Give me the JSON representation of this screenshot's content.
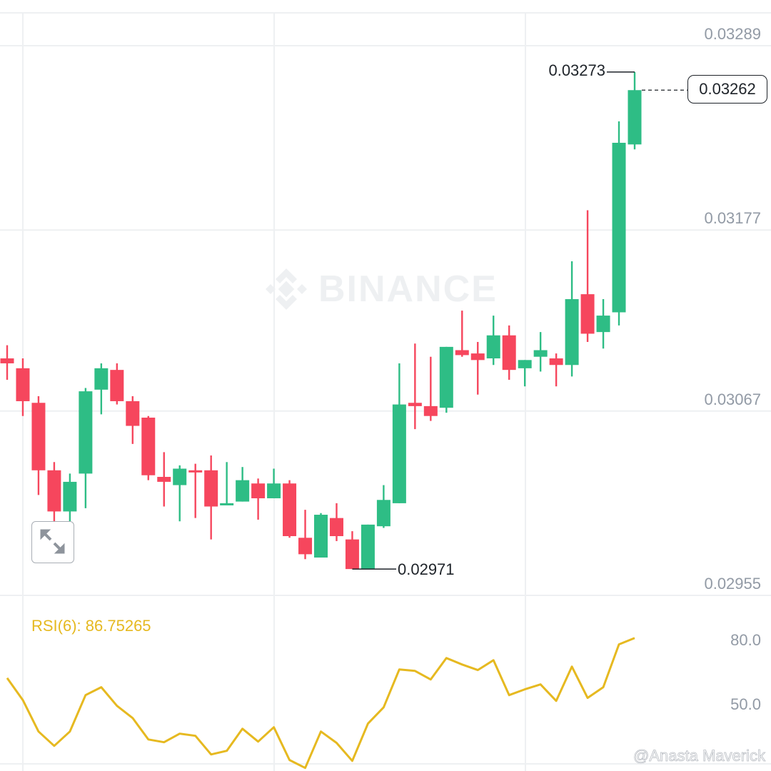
{
  "chart_data": {
    "type": "candlestick",
    "y_ticks": [
      "0.03289",
      "0.03177",
      "0.03067",
      "0.02955"
    ],
    "y_tick_values": [
      0.03289,
      0.03177,
      0.03067,
      0.02955
    ],
    "ylim": [
      0.02955,
      0.03289
    ],
    "grid": true,
    "colors": {
      "up": "#2ebd85",
      "down": "#f6465d",
      "rsi": "#e6b920",
      "grid": "#eef0f2",
      "axis_text": "#929aa5"
    },
    "candles": [
      {
        "o": 0.03099,
        "h": 0.03107,
        "l": 0.03086,
        "c": 0.03096
      },
      {
        "o": 0.03093,
        "h": 0.03099,
        "l": 0.03064,
        "c": 0.03073
      },
      {
        "o": 0.03072,
        "h": 0.03076,
        "l": 0.03016,
        "c": 0.03031
      },
      {
        "o": 0.03031,
        "h": 0.03036,
        "l": 0.03,
        "c": 0.03006
      },
      {
        "o": 0.03006,
        "h": 0.03029,
        "l": 0.03,
        "c": 0.03024
      },
      {
        "o": 0.03029,
        "h": 0.03081,
        "l": 0.03008,
        "c": 0.03079
      },
      {
        "o": 0.0308,
        "h": 0.03096,
        "l": 0.03065,
        "c": 0.03093
      },
      {
        "o": 0.03092,
        "h": 0.03096,
        "l": 0.03071,
        "c": 0.03073
      },
      {
        "o": 0.03073,
        "h": 0.03076,
        "l": 0.03047,
        "c": 0.03058
      },
      {
        "o": 0.03063,
        "h": 0.03064,
        "l": 0.03025,
        "c": 0.03028
      },
      {
        "o": 0.03027,
        "h": 0.03042,
        "l": 0.03009,
        "c": 0.03024
      },
      {
        "o": 0.03022,
        "h": 0.03034,
        "l": 0.03,
        "c": 0.03032
      },
      {
        "o": 0.03031,
        "h": 0.03035,
        "l": 0.03002,
        "c": 0.0303
      },
      {
        "o": 0.03031,
        "h": 0.0304,
        "l": 0.02989,
        "c": 0.03009
      },
      {
        "o": 0.0301,
        "h": 0.03036,
        "l": 0.0301,
        "c": 0.03011
      },
      {
        "o": 0.03012,
        "h": 0.03033,
        "l": 0.03012,
        "c": 0.03025
      },
      {
        "o": 0.03023,
        "h": 0.03026,
        "l": 0.03001,
        "c": 0.03014
      },
      {
        "o": 0.03014,
        "h": 0.03032,
        "l": 0.03014,
        "c": 0.03023
      },
      {
        "o": 0.03023,
        "h": 0.03025,
        "l": 0.0299,
        "c": 0.02991
      },
      {
        "o": 0.0299,
        "h": 0.03007,
        "l": 0.02977,
        "c": 0.0298
      },
      {
        "o": 0.02978,
        "h": 0.03005,
        "l": 0.02978,
        "c": 0.03004
      },
      {
        "o": 0.03002,
        "h": 0.03011,
        "l": 0.02988,
        "c": 0.02991
      },
      {
        "o": 0.02989,
        "h": 0.02994,
        "l": 0.02971,
        "c": 0.02971
      },
      {
        "o": 0.02971,
        "h": 0.02998,
        "l": 0.02971,
        "c": 0.02998
      },
      {
        "o": 0.02997,
        "h": 0.03022,
        "l": 0.02996,
        "c": 0.03013
      },
      {
        "o": 0.03011,
        "h": 0.03096,
        "l": 0.03011,
        "c": 0.03071
      },
      {
        "o": 0.03072,
        "h": 0.03108,
        "l": 0.03056,
        "c": 0.0307
      },
      {
        "o": 0.0307,
        "h": 0.031,
        "l": 0.03061,
        "c": 0.03064
      },
      {
        "o": 0.03069,
        "h": 0.03106,
        "l": 0.03066,
        "c": 0.03106
      },
      {
        "o": 0.03104,
        "h": 0.03128,
        "l": 0.031,
        "c": 0.03101
      },
      {
        "o": 0.03102,
        "h": 0.03109,
        "l": 0.03077,
        "c": 0.03098
      },
      {
        "o": 0.03099,
        "h": 0.03125,
        "l": 0.03095,
        "c": 0.03113
      },
      {
        "o": 0.03113,
        "h": 0.03119,
        "l": 0.03086,
        "c": 0.03092
      },
      {
        "o": 0.03093,
        "h": 0.03098,
        "l": 0.03082,
        "c": 0.03098
      },
      {
        "o": 0.031,
        "h": 0.03115,
        "l": 0.03091,
        "c": 0.03104
      },
      {
        "o": 0.03099,
        "h": 0.03102,
        "l": 0.03082,
        "c": 0.03095
      },
      {
        "o": 0.03095,
        "h": 0.03158,
        "l": 0.03088,
        "c": 0.03135
      },
      {
        "o": 0.03138,
        "h": 0.03189,
        "l": 0.03109,
        "c": 0.03114
      },
      {
        "o": 0.03115,
        "h": 0.03135,
        "l": 0.03105,
        "c": 0.03125
      },
      {
        "o": 0.03127,
        "h": 0.03243,
        "l": 0.03119,
        "c": 0.0323
      },
      {
        "o": 0.03229,
        "h": 0.03273,
        "l": 0.03226,
        "c": 0.03262
      }
    ],
    "high_label": "0.03273",
    "low_label": "0.02971",
    "current_price": "0.03262",
    "rsi": {
      "title": "RSI(6): 86.75265",
      "y_ticks": [
        "80.0",
        "50.0"
      ],
      "y_tick_values": [
        80,
        50
      ],
      "values": [
        68.1,
        57.8,
        43.1,
        36.4,
        43.1,
        60.1,
        63.8,
        55.1,
        49.4,
        39.4,
        38.1,
        42.1,
        41.1,
        32.4,
        34.1,
        44.4,
        38.4,
        45.1,
        29.8,
        26.1,
        43.1,
        37.8,
        29.4,
        46.8,
        54.4,
        72.1,
        71.4,
        67.4,
        77.4,
        74.4,
        71.8,
        76.4,
        60.1,
        62.8,
        65.1,
        57.4,
        73.4,
        58.8,
        63.8,
        83.8,
        86.75
      ]
    }
  },
  "watermark": "BINANCE",
  "credit": "@Anasta Maverick",
  "icons": {
    "expand": "expand-arrows-icon",
    "logo": "binance-logo-icon"
  }
}
